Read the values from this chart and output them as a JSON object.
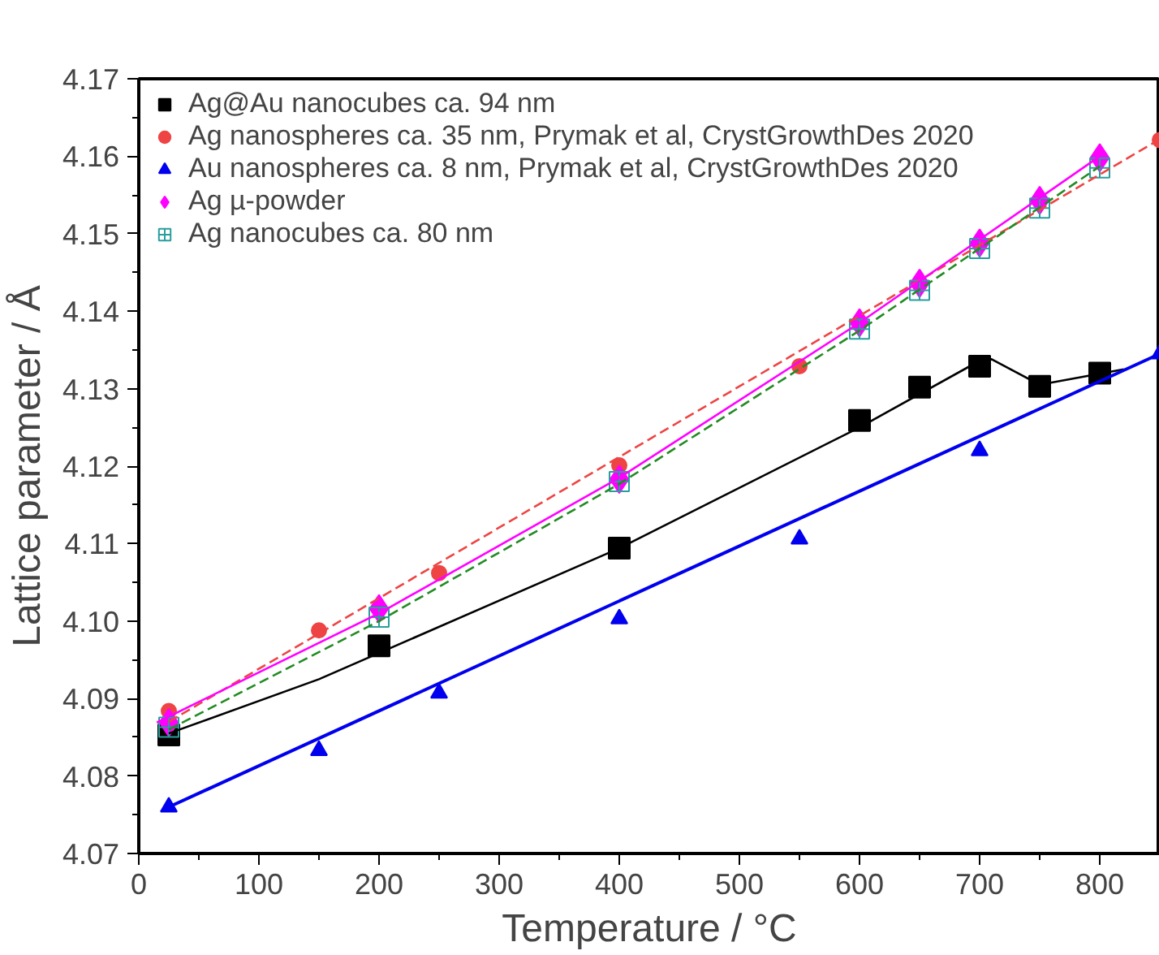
{
  "chart_data": {
    "type": "scatter",
    "xlabel": "Temperature / °C",
    "ylabel": "Lattice parameter / Å",
    "xlim": [
      0,
      850
    ],
    "ylim": [
      4.07,
      4.17
    ],
    "xticks": [
      0,
      100,
      200,
      300,
      400,
      500,
      600,
      700,
      800
    ],
    "yticks": [
      4.07,
      4.08,
      4.09,
      {
        "value": 4.1,
        "label": "4.10"
      },
      4.11,
      4.12,
      4.13,
      4.14,
      4.15,
      4.16,
      4.17
    ],
    "grid": false,
    "legend": "top left",
    "series": [
      {
        "name": "Ag@Au nanocubes ca. 94 nm",
        "marker": "square",
        "color": "#000000",
        "x": [
          25,
          200,
          400,
          600,
          650,
          700,
          750,
          800
        ],
        "values": [
          4.0853,
          4.0968,
          4.1094,
          4.1259,
          4.1302,
          4.1329,
          4.1303,
          4.132
        ]
      },
      {
        "name": "Ag nanospheres ca. 35 nm, Prymak et al, CrystGrowthDes 2020",
        "marker": "circle",
        "color": "#ee4444",
        "x": [
          25,
          150,
          250,
          400,
          550,
          850
        ],
        "values": [
          4.0884,
          4.0988,
          4.1062,
          4.1201,
          4.1329,
          4.1621
        ]
      },
      {
        "name": "Au nanospheres ca. 8 nm, Prymak et al, CrystGrowthDes 2020",
        "marker": "triangle",
        "color": "#0000ee",
        "x": [
          25,
          150,
          250,
          400,
          550,
          700,
          850
        ],
        "values": [
          4.076,
          4.0833,
          4.0907,
          4.1003,
          4.1106,
          4.122,
          4.1345
        ]
      },
      {
        "name": "Ag µ-powder",
        "marker": "diamond",
        "color": "#ff00ff",
        "x": [
          25,
          200,
          400,
          600,
          650,
          700,
          750,
          800
        ],
        "values": [
          4.0869,
          4.1016,
          4.1183,
          4.1385,
          4.1436,
          4.1488,
          4.1543,
          4.1598
        ]
      },
      {
        "name": "Ag nanocubes ca. 80 nm",
        "marker": "cross",
        "color": "#2a9d9d",
        "x": [
          25,
          200,
          400,
          600,
          650,
          700,
          750,
          800
        ],
        "values": [
          4.0863,
          4.1005,
          4.118,
          4.1377,
          4.1427,
          4.1481,
          4.1533,
          4.1585
        ]
      },
      {
        "type": "line",
        "line_style": "solid",
        "color": "#000000",
        "x": [
          25,
          150,
          400,
          600,
          700,
          710,
          750,
          820
        ],
        "values": [
          4.0855,
          4.0925,
          4.1094,
          4.125,
          4.1336,
          4.1338,
          4.1305,
          4.1325
        ]
      },
      {
        "type": "line",
        "line_style": "dashed",
        "color": "#ee4444",
        "x": [
          25,
          850
        ],
        "values": [
          4.087,
          4.1622
        ]
      },
      {
        "type": "line",
        "line_style": "solid",
        "color": "#0000ee",
        "x": [
          25,
          850
        ],
        "values": [
          4.076,
          4.1345
        ]
      },
      {
        "type": "line",
        "line_style": "solid",
        "color": "#ff00ff",
        "x": [
          15,
          200,
          400,
          600,
          800
        ],
        "values": [
          4.0869,
          4.101,
          4.1185,
          4.1385,
          4.16
        ]
      },
      {
        "type": "line",
        "line_style": "dashed",
        "color": "#228b22",
        "x": [
          25,
          200,
          400,
          600,
          800
        ],
        "values": [
          4.086,
          4.1,
          4.1177,
          4.1375,
          4.1587
        ]
      }
    ]
  }
}
